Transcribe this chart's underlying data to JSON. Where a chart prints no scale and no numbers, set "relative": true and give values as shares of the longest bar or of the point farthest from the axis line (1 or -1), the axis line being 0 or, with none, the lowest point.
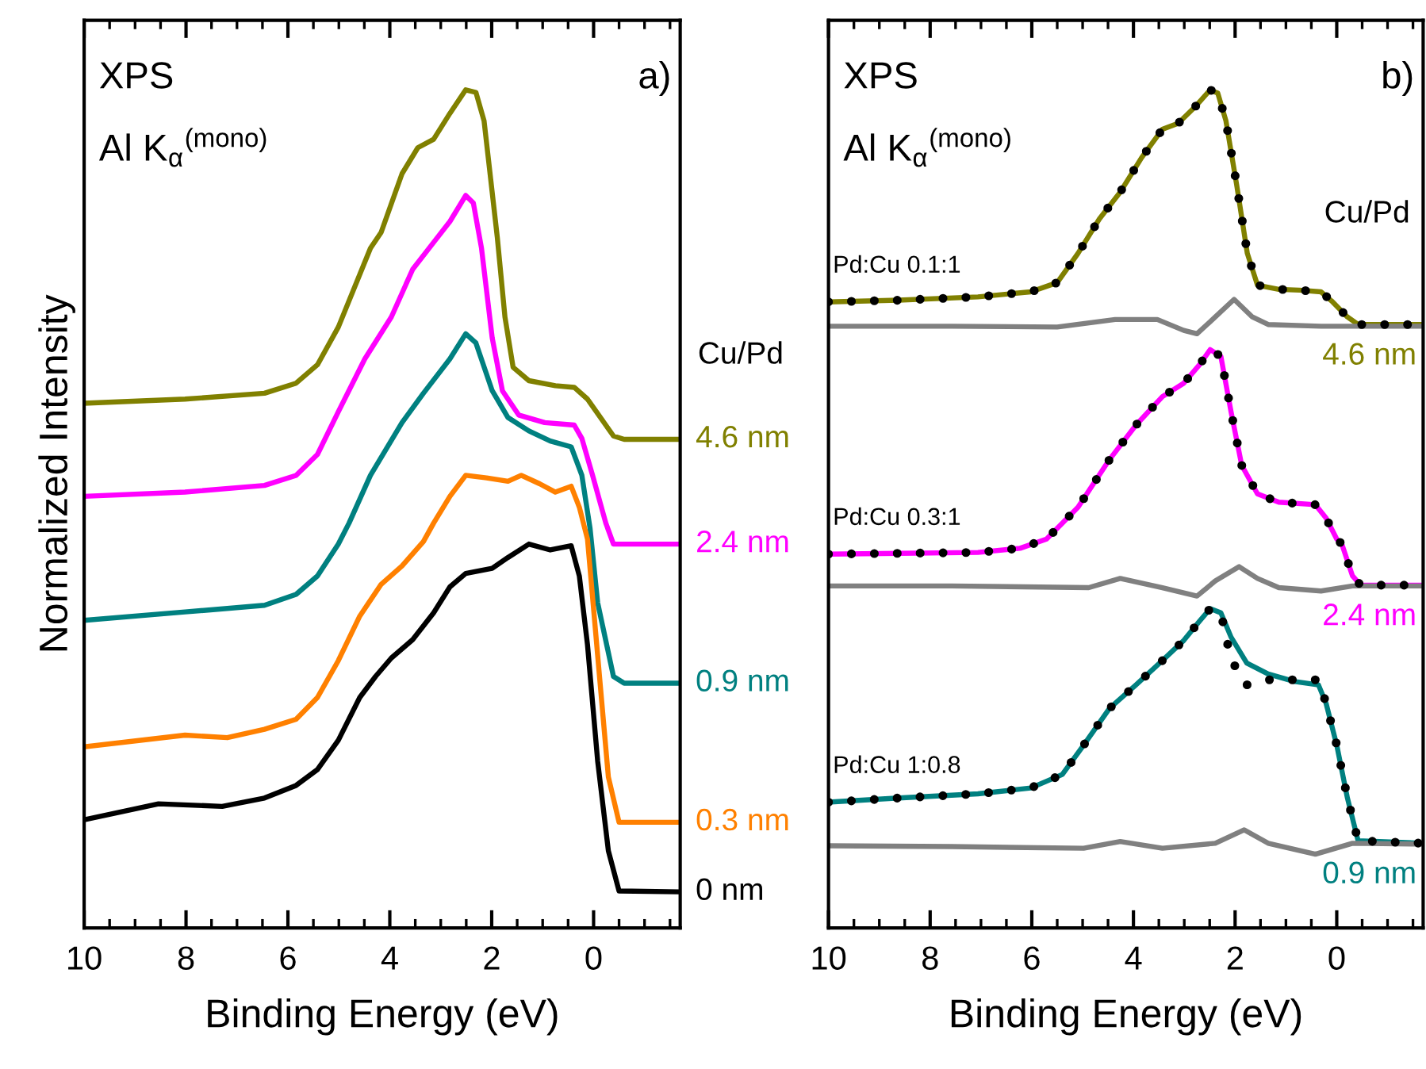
{
  "chart_data": [
    {
      "type": "line",
      "relative": true,
      "xlabel": "Binding Energy (eV)",
      "ylabel": "Normalized Intensity",
      "legend_title": "Cu/Pd",
      "annotations": [
        "XPS",
        "Al K$_{α}$$^{(mono)}$",
        "a)"
      ],
      "xlim": [
        10,
        -1.7
      ],
      "xticks": [
        10,
        8,
        6,
        4,
        2,
        0
      ],
      "legend": false,
      "grid": false,
      "series": [
        {
          "name": "4.6 nm",
          "color": "#808000",
          "x": [
            10.0,
            8.02,
            6.46,
            5.84,
            5.42,
            5.01,
            4.38,
            4.17,
            3.76,
            3.45,
            3.14,
            2.82,
            2.51,
            2.31,
            2.15,
            1.89,
            1.74,
            1.58,
            1.27,
            0.75,
            0.38,
            0.12,
            -0.39,
            -0.6,
            -1.7
          ],
          "values": [
            0.626,
            0.631,
            0.638,
            0.65,
            0.672,
            0.717,
            0.811,
            0.83,
            0.9,
            0.931,
            0.941,
            0.972,
            1.0,
            0.997,
            0.963,
            0.824,
            0.729,
            0.669,
            0.653,
            0.647,
            0.645,
            0.631,
            0.587,
            0.583,
            0.583
          ]
        },
        {
          "name": "2.4 nm",
          "color": "#ff00ff",
          "x": [
            10.0,
            8.02,
            6.46,
            5.84,
            5.42,
            5.01,
            4.49,
            3.97,
            3.55,
            3.14,
            2.82,
            2.51,
            2.36,
            2.2,
            1.99,
            1.79,
            1.47,
            0.96,
            0.38,
            0.23,
            0.02,
            -0.24,
            -0.39,
            -0.6,
            -1.7
          ],
          "values": [
            0.515,
            0.52,
            0.528,
            0.54,
            0.565,
            0.616,
            0.679,
            0.729,
            0.786,
            0.818,
            0.843,
            0.874,
            0.865,
            0.811,
            0.704,
            0.641,
            0.612,
            0.603,
            0.6,
            0.584,
            0.54,
            0.483,
            0.458,
            0.458,
            0.458
          ]
        },
        {
          "name": "0.9 nm",
          "color": "#008080",
          "x": [
            10.0,
            8.02,
            6.46,
            5.84,
            5.42,
            5.01,
            4.8,
            4.38,
            3.76,
            3.34,
            2.82,
            2.51,
            2.31,
            1.99,
            1.68,
            1.27,
            0.85,
            0.44,
            0.23,
            0.07,
            -0.08,
            -0.39,
            -0.6,
            -1.7
          ],
          "values": [
            0.367,
            0.377,
            0.385,
            0.398,
            0.42,
            0.458,
            0.483,
            0.54,
            0.603,
            0.638,
            0.679,
            0.709,
            0.698,
            0.641,
            0.609,
            0.593,
            0.581,
            0.574,
            0.54,
            0.477,
            0.388,
            0.3,
            0.292,
            0.292
          ]
        },
        {
          "name": "0.3 nm",
          "color": "#ff8000",
          "x": [
            10.0,
            8.02,
            7.19,
            6.46,
            5.84,
            5.42,
            5.01,
            4.59,
            4.17,
            3.76,
            3.34,
            3.14,
            2.82,
            2.51,
            2.1,
            1.68,
            1.42,
            1.06,
            0.75,
            0.44,
            0.28,
            0.12,
            -0.08,
            -0.29,
            -0.5,
            -1.7
          ],
          "values": [
            0.216,
            0.23,
            0.227,
            0.237,
            0.249,
            0.275,
            0.319,
            0.372,
            0.41,
            0.432,
            0.461,
            0.483,
            0.515,
            0.54,
            0.537,
            0.533,
            0.54,
            0.53,
            0.52,
            0.527,
            0.502,
            0.464,
            0.325,
            0.18,
            0.126,
            0.126
          ]
        },
        {
          "name": "0 nm",
          "color": "#000000",
          "x": [
            10.0,
            8.54,
            7.29,
            6.46,
            5.84,
            5.42,
            5.01,
            4.59,
            4.28,
            3.97,
            3.55,
            3.14,
            2.82,
            2.51,
            1.99,
            1.68,
            1.27,
            0.85,
            0.44,
            0.28,
            0.12,
            -0.08,
            -0.29,
            -0.5,
            -1.7
          ],
          "values": [
            0.129,
            0.148,
            0.145,
            0.155,
            0.17,
            0.189,
            0.224,
            0.275,
            0.3,
            0.322,
            0.344,
            0.376,
            0.407,
            0.423,
            0.429,
            0.442,
            0.458,
            0.451,
            0.456,
            0.42,
            0.338,
            0.199,
            0.092,
            0.044,
            0.043
          ]
        }
      ]
    },
    {
      "type": "line",
      "relative": true,
      "xlabel": "Binding Energy (eV)",
      "legend_title": "Cu/Pd",
      "annotations": [
        "XPS",
        "Al K$_{α}$$^{(mono)}$",
        "b)"
      ],
      "xlim": [
        10,
        -1.7
      ],
      "xticks": [
        10,
        8,
        6,
        4,
        2,
        0
      ],
      "legend": false,
      "grid": false,
      "series": [
        {
          "name": "4.6 nm",
          "color": "#808000",
          "x": [
            10.0,
            8.62,
            7.06,
            6.02,
            5.5,
            5.09,
            4.67,
            4.26,
            3.84,
            3.43,
            3.12,
            2.8,
            2.49,
            2.34,
            2.18,
            1.97,
            1.76,
            1.56,
            1.14,
            0.73,
            0.31,
            0.1,
            -0.21,
            -0.42,
            -1.7
          ],
          "values": [
            0.747,
            0.749,
            0.753,
            0.759,
            0.77,
            0.805,
            0.846,
            0.878,
            0.919,
            0.953,
            0.96,
            0.979,
            1.0,
            0.996,
            0.963,
            0.887,
            0.805,
            0.767,
            0.762,
            0.761,
            0.759,
            0.748,
            0.729,
            0.72,
            0.72
          ]
        },
        {
          "name": "Pd:Cu 0.1:1",
          "line_style": "dotted",
          "color": "#000000",
          "x": [
            10.0,
            8.62,
            7.06,
            6.02,
            5.5,
            5.09,
            4.67,
            4.26,
            3.84,
            3.43,
            3.12,
            2.8,
            2.49,
            2.34,
            2.18,
            1.97,
            1.76,
            1.56,
            1.14,
            0.73,
            0.31,
            0.1,
            -0.21,
            -0.42,
            -1.7
          ],
          "values": [
            0.747,
            0.749,
            0.753,
            0.759,
            0.77,
            0.805,
            0.846,
            0.878,
            0.919,
            0.953,
            0.96,
            0.979,
            1.0,
            0.996,
            0.963,
            0.887,
            0.805,
            0.767,
            0.762,
            0.761,
            0.759,
            0.748,
            0.729,
            0.72,
            0.72
          ]
        },
        {
          "color": "#808080",
          "x": [
            10.0,
            7.58,
            5.5,
            4.36,
            3.53,
            3.01,
            2.75,
            2.39,
            2.02,
            1.66,
            1.35,
            0.31,
            -1.7
          ],
          "values": [
            0.718,
            0.718,
            0.717,
            0.726,
            0.726,
            0.713,
            0.709,
            0.729,
            0.75,
            0.729,
            0.72,
            0.718,
            0.718
          ]
        },
        {
          "name": "2.4 nm",
          "color": "#ff00ff",
          "x": [
            10.0,
            8.62,
            7.06,
            6.23,
            5.71,
            5.4,
            5.09,
            4.47,
            3.95,
            3.43,
            3.01,
            2.7,
            2.49,
            2.28,
            2.08,
            1.87,
            1.56,
            1.14,
            0.42,
            0.21,
            0.0,
            -0.1,
            -0.31,
            -0.47,
            -1.7
          ],
          "values": [
            0.446,
            0.447,
            0.448,
            0.453,
            0.464,
            0.483,
            0.502,
            0.559,
            0.6,
            0.634,
            0.65,
            0.672,
            0.69,
            0.682,
            0.616,
            0.552,
            0.518,
            0.508,
            0.505,
            0.489,
            0.464,
            0.458,
            0.42,
            0.409,
            0.409
          ]
        },
        {
          "name": "Pd:Cu 0.3:1",
          "line_style": "dotted",
          "color": "#000000",
          "x": [
            10.0,
            8.62,
            7.06,
            6.23,
            5.71,
            5.4,
            5.09,
            4.47,
            3.95,
            3.43,
            3.01,
            2.7,
            2.49,
            2.28,
            2.08,
            1.87,
            1.56,
            1.14,
            0.42,
            0.21,
            0.0,
            -0.1,
            -0.31,
            -0.47,
            -1.7
          ],
          "values": [
            0.446,
            0.447,
            0.448,
            0.453,
            0.464,
            0.483,
            0.502,
            0.559,
            0.6,
            0.634,
            0.65,
            0.672,
            0.69,
            0.682,
            0.616,
            0.552,
            0.518,
            0.508,
            0.505,
            0.489,
            0.464,
            0.458,
            0.42,
            0.409,
            0.409
          ]
        },
        {
          "color": "#808080",
          "x": [
            10.0,
            7.58,
            4.88,
            4.26,
            3.43,
            2.75,
            2.39,
            1.92,
            1.56,
            1.14,
            0.31,
            -0.31,
            -1.7
          ],
          "values": [
            0.408,
            0.408,
            0.406,
            0.417,
            0.406,
            0.396,
            0.414,
            0.431,
            0.417,
            0.406,
            0.402,
            0.408,
            0.408
          ]
        },
        {
          "name": "0.9 nm",
          "color": "#008080",
          "x": [
            10.0,
            8.62,
            7.06,
            6.02,
            5.4,
            4.98,
            4.47,
            3.95,
            3.43,
            3.01,
            2.7,
            2.49,
            2.28,
            2.08,
            1.77,
            1.35,
            0.83,
            0.36,
            0.21,
            0.0,
            -0.21,
            -0.42,
            -1.7
          ],
          "values": [
            0.15,
            0.155,
            0.16,
            0.167,
            0.183,
            0.218,
            0.262,
            0.29,
            0.319,
            0.343,
            0.366,
            0.381,
            0.376,
            0.347,
            0.316,
            0.303,
            0.294,
            0.29,
            0.268,
            0.218,
            0.155,
            0.104,
            0.101
          ]
        },
        {
          "name": "Pd:Cu 1:0.8",
          "line_style": "dotted",
          "color": "#000000",
          "x": [
            10.0,
            8.62,
            7.06,
            6.02,
            5.4,
            4.98,
            4.47,
            3.95,
            3.43,
            3.01,
            2.7,
            2.49,
            2.28,
            2.08,
            1.77,
            1.35,
            0.83,
            0.36,
            0.21,
            0.0,
            -0.21,
            -0.42,
            -1.7
          ],
          "values": [
            0.15,
            0.155,
            0.16,
            0.167,
            0.183,
            0.218,
            0.262,
            0.29,
            0.319,
            0.343,
            0.366,
            0.381,
            0.376,
            0.32,
            0.29,
            0.296,
            0.296,
            0.296,
            0.268,
            0.218,
            0.155,
            0.104,
            0.101
          ]
        },
        {
          "color": "#808080",
          "x": [
            10.0,
            7.58,
            4.98,
            4.26,
            3.43,
            2.39,
            1.82,
            1.35,
            0.42,
            -0.31,
            -1.7
          ],
          "values": [
            0.098,
            0.097,
            0.095,
            0.103,
            0.095,
            0.101,
            0.117,
            0.101,
            0.088,
            0.101,
            0.1
          ]
        }
      ]
    }
  ]
}
